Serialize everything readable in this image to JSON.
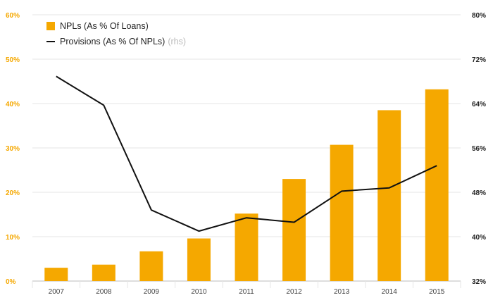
{
  "chart_data": {
    "type": "bar+line",
    "categories": [
      "2007",
      "2008",
      "2009",
      "2010",
      "2011",
      "2012",
      "2013",
      "2014",
      "2015"
    ],
    "series": [
      {
        "name": "NPLs (As % Of Loans)",
        "type": "bar",
        "axis": "left",
        "color": "#f5a800",
        "values": [
          3.0,
          3.7,
          6.7,
          9.6,
          15.2,
          23.0,
          30.7,
          38.5,
          43.2
        ]
      },
      {
        "name": "Provisions (As % Of NPLs)",
        "note": "(rhs)",
        "type": "line",
        "axis": "right",
        "color": "#111111",
        "values": [
          68.9,
          63.7,
          44.8,
          41.0,
          43.4,
          42.6,
          48.2,
          48.8,
          52.8
        ]
      }
    ],
    "y_left": {
      "ticks": [
        "0%",
        "10%",
        "20%",
        "30%",
        "40%",
        "50%",
        "60%"
      ],
      "range": [
        0,
        60
      ],
      "color": "#f5a800"
    },
    "y_right": {
      "ticks": [
        "32%",
        "40%",
        "48%",
        "56%",
        "64%",
        "72%",
        "80%"
      ],
      "range": [
        32,
        80
      ],
      "color": "#222222"
    },
    "grid": true,
    "legend": "top-left"
  }
}
